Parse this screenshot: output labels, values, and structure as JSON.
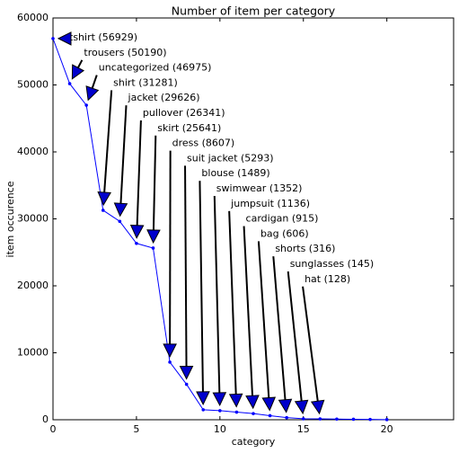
{
  "chart_data": {
    "type": "line",
    "title": "Number of item per category",
    "x_label": "category",
    "y_label": "item occurence",
    "x": [
      0,
      1,
      2,
      3,
      4,
      5,
      6,
      7,
      8,
      9,
      10,
      11,
      12,
      13,
      14,
      15,
      16,
      17,
      18,
      19,
      20
    ],
    "values": [
      56929,
      50190,
      46975,
      31281,
      29626,
      26341,
      25641,
      8607,
      5293,
      1489,
      1352,
      1136,
      915,
      606,
      316,
      145,
      128,
      97,
      70,
      45,
      20
    ],
    "color": "#0000ff",
    "arrow_head_color": "#0000cc",
    "annotations": [
      "tshirt (56929)",
      "trousers (50190)",
      "uncategorized (46975)",
      "shirt (31281)",
      "jacket (29626)",
      "pullover (26341)",
      "skirt (25641)",
      "dress (8607)",
      "suit jacket (5293)",
      "blouse (1489)",
      "swimwear (1352)",
      "jumpsuit (1136)",
      "cardigan (915)",
      "bag (606)",
      "shorts (316)",
      "sunglasses (145)",
      "hat (128)"
    ],
    "xlim": [
      0,
      24
    ],
    "ylim": [
      0,
      60000
    ],
    "xticks": [
      0,
      5,
      10,
      15,
      20
    ],
    "yticks": [
      0,
      10000,
      20000,
      30000,
      40000,
      50000,
      60000
    ]
  }
}
